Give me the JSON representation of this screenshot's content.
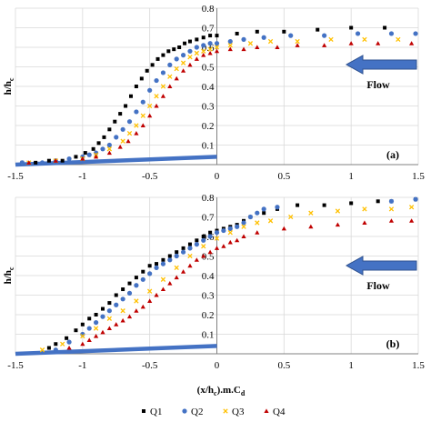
{
  "colors": {
    "Q1": "#000000",
    "Q2": "#4472C4",
    "Q3": "#FFC000",
    "Q4": "#C00000",
    "bed": "#4472C4",
    "arrow": "#4472C4",
    "arrow_stroke": "#2F528F",
    "grid": "#D9D9D9",
    "axis": "#808080"
  },
  "legend_symbols": {
    "Q1": "■",
    "Q2": "●",
    "Q3": "×",
    "Q4": "▲"
  },
  "xlabel_parts": {
    "base": "(x/h",
    "sub1": "c",
    "mid": ").m.C",
    "sub2": "d"
  },
  "ylabel_parts": {
    "base": "h/h",
    "sub": "c"
  },
  "flow_label": "Flow",
  "chart_data": [
    {
      "type": "scatter",
      "panel_label": "(a)",
      "xlim": [
        -1.5,
        1.5
      ],
      "ylim": [
        0,
        0.8
      ],
      "x_ticks": [
        -1.5,
        -1,
        -0.5,
        0,
        0.5,
        1,
        1.5
      ],
      "x_tick_labels": [
        "-1.5",
        "-1",
        "-0.5",
        "0",
        "0.5",
        "1",
        "1.5"
      ],
      "y_ticks": [
        0.1,
        0.2,
        0.3,
        0.4,
        0.5,
        0.6,
        0.7,
        0.8
      ],
      "y_tick_labels": [
        "0.1",
        "0.2",
        "0.3",
        "0.4",
        "0.5",
        "0.6",
        "0.7",
        "0.8"
      ],
      "grid": true,
      "legend": "bottom",
      "bed_line": {
        "x": [
          -1.5,
          0
        ],
        "y": [
          0,
          0.04
        ]
      },
      "series": [
        {
          "name": "Q1",
          "marker": "square",
          "x": [
            -1.45,
            -1.35,
            -1.25,
            -1.15,
            -1.05,
            -0.98,
            -0.92,
            -0.88,
            -0.84,
            -0.8,
            -0.76,
            -0.72,
            -0.68,
            -0.64,
            -0.6,
            -0.56,
            -0.52,
            -0.48,
            -0.44,
            -0.4,
            -0.36,
            -0.32,
            -0.28,
            -0.24,
            -0.2,
            -0.15,
            -0.1,
            -0.05,
            0.0,
            0.15,
            0.3,
            0.5,
            0.75,
            1.0,
            1.25
          ],
          "y": [
            0.01,
            0.01,
            0.02,
            0.02,
            0.04,
            0.06,
            0.08,
            0.11,
            0.14,
            0.18,
            0.22,
            0.26,
            0.3,
            0.35,
            0.4,
            0.44,
            0.48,
            0.51,
            0.54,
            0.56,
            0.58,
            0.59,
            0.6,
            0.62,
            0.63,
            0.64,
            0.65,
            0.66,
            0.66,
            0.67,
            0.68,
            0.68,
            0.69,
            0.7,
            0.7
          ]
        },
        {
          "name": "Q2",
          "marker": "circle",
          "x": [
            -1.45,
            -1.3,
            -1.2,
            -1.1,
            -1.0,
            -0.95,
            -0.9,
            -0.85,
            -0.8,
            -0.75,
            -0.7,
            -0.65,
            -0.6,
            -0.55,
            -0.5,
            -0.45,
            -0.4,
            -0.35,
            -0.3,
            -0.25,
            -0.2,
            -0.15,
            -0.1,
            -0.05,
            0.0,
            0.1,
            0.2,
            0.35,
            0.55,
            0.8,
            1.05,
            1.3,
            1.48
          ],
          "y": [
            0.01,
            0.01,
            0.02,
            0.03,
            0.04,
            0.05,
            0.06,
            0.08,
            0.1,
            0.14,
            0.18,
            0.22,
            0.27,
            0.32,
            0.38,
            0.43,
            0.47,
            0.51,
            0.54,
            0.56,
            0.58,
            0.6,
            0.61,
            0.62,
            0.62,
            0.63,
            0.64,
            0.65,
            0.66,
            0.66,
            0.67,
            0.67,
            0.67
          ]
        },
        {
          "name": "Q3",
          "marker": "x",
          "x": [
            -1.4,
            -1.2,
            -1.0,
            -0.9,
            -0.8,
            -0.7,
            -0.65,
            -0.6,
            -0.55,
            -0.5,
            -0.45,
            -0.4,
            -0.35,
            -0.3,
            -0.25,
            -0.2,
            -0.15,
            -0.1,
            -0.05,
            0.0,
            0.1,
            0.25,
            0.4,
            0.6,
            0.85,
            1.1,
            1.35
          ],
          "y": [
            0.01,
            0.02,
            0.03,
            0.05,
            0.08,
            0.12,
            0.16,
            0.2,
            0.25,
            0.3,
            0.35,
            0.4,
            0.45,
            0.49,
            0.52,
            0.55,
            0.57,
            0.58,
            0.59,
            0.6,
            0.61,
            0.62,
            0.63,
            0.63,
            0.64,
            0.64,
            0.64
          ]
        },
        {
          "name": "Q4",
          "marker": "triangle",
          "x": [
            -1.4,
            -1.2,
            -1.0,
            -0.9,
            -0.8,
            -0.72,
            -0.66,
            -0.6,
            -0.55,
            -0.5,
            -0.45,
            -0.4,
            -0.35,
            -0.3,
            -0.25,
            -0.2,
            -0.15,
            -0.1,
            -0.05,
            0.0,
            0.1,
            0.2,
            0.3,
            0.45,
            0.6,
            0.8,
            1.0,
            1.2,
            1.45
          ],
          "y": [
            0.01,
            0.02,
            0.03,
            0.04,
            0.06,
            0.09,
            0.12,
            0.16,
            0.2,
            0.25,
            0.3,
            0.35,
            0.4,
            0.44,
            0.48,
            0.51,
            0.54,
            0.56,
            0.57,
            0.58,
            0.59,
            0.59,
            0.6,
            0.6,
            0.61,
            0.61,
            0.62,
            0.62,
            0.62
          ]
        }
      ]
    },
    {
      "type": "scatter",
      "panel_label": "(b)",
      "xlim": [
        -1.5,
        1.5
      ],
      "ylim": [
        0,
        0.8
      ],
      "x_ticks": [
        -1.5,
        -1,
        -0.5,
        0,
        0.5,
        1,
        1.5
      ],
      "x_tick_labels": [
        "-1.5",
        "-1",
        "-0.5",
        "0",
        "0.5",
        "1",
        "1.5"
      ],
      "y_ticks": [
        0.1,
        0.2,
        0.3,
        0.4,
        0.5,
        0.6,
        0.7,
        0.8
      ],
      "y_tick_labels": [
        "0.1",
        "0.2",
        "0.3",
        "0.4",
        "0.5",
        "0.6",
        "0.7",
        "0.8"
      ],
      "grid": true,
      "legend": "bottom",
      "bed_line": {
        "x": [
          -1.5,
          0
        ],
        "y": [
          0,
          0.04
        ]
      },
      "series": [
        {
          "name": "Q1",
          "marker": "square",
          "x": [
            -1.25,
            -1.2,
            -1.12,
            -1.05,
            -1.0,
            -0.95,
            -0.9,
            -0.85,
            -0.8,
            -0.75,
            -0.7,
            -0.65,
            -0.6,
            -0.55,
            -0.5,
            -0.45,
            -0.4,
            -0.35,
            -0.3,
            -0.25,
            -0.2,
            -0.15,
            -0.1,
            -0.05,
            0.0,
            0.05,
            0.1,
            0.15,
            0.2,
            0.25,
            0.35,
            0.45,
            0.6,
            0.8,
            1.0,
            1.2,
            1.3,
            1.48
          ],
          "y": [
            0.03,
            0.05,
            0.08,
            0.12,
            0.15,
            0.18,
            0.2,
            0.23,
            0.26,
            0.3,
            0.33,
            0.36,
            0.39,
            0.42,
            0.45,
            0.46,
            0.48,
            0.5,
            0.52,
            0.54,
            0.56,
            0.58,
            0.6,
            0.62,
            0.63,
            0.64,
            0.65,
            0.66,
            0.68,
            0.7,
            0.72,
            0.74,
            0.76,
            0.76,
            0.77,
            0.78,
            0.78,
            0.79
          ]
        },
        {
          "name": "Q2",
          "marker": "circle",
          "x": [
            -1.2,
            -1.1,
            -1.0,
            -0.95,
            -0.9,
            -0.85,
            -0.8,
            -0.75,
            -0.7,
            -0.65,
            -0.6,
            -0.55,
            -0.5,
            -0.45,
            -0.4,
            -0.35,
            -0.3,
            -0.25,
            -0.2,
            -0.15,
            -0.1,
            -0.05,
            0.0,
            0.05,
            0.1,
            0.15,
            0.2,
            0.25,
            0.3,
            0.35,
            0.45,
            1.3,
            1.48
          ],
          "y": [
            0.02,
            0.06,
            0.1,
            0.13,
            0.16,
            0.19,
            0.22,
            0.25,
            0.28,
            0.31,
            0.35,
            0.38,
            0.41,
            0.44,
            0.46,
            0.48,
            0.5,
            0.52,
            0.54,
            0.56,
            0.58,
            0.6,
            0.62,
            0.63,
            0.64,
            0.65,
            0.67,
            0.7,
            0.72,
            0.74,
            0.75,
            0.78,
            0.79
          ]
        },
        {
          "name": "Q3",
          "marker": "x",
          "x": [
            -1.3,
            -1.15,
            -1.0,
            -0.9,
            -0.8,
            -0.7,
            -0.6,
            -0.5,
            -0.4,
            -0.3,
            -0.2,
            -0.1,
            0.0,
            0.1,
            0.2,
            0.3,
            0.4,
            0.55,
            0.7,
            0.9,
            1.1,
            1.3,
            1.45
          ],
          "y": [
            0.02,
            0.05,
            0.09,
            0.13,
            0.18,
            0.22,
            0.27,
            0.32,
            0.38,
            0.44,
            0.5,
            0.55,
            0.59,
            0.62,
            0.65,
            0.67,
            0.68,
            0.7,
            0.72,
            0.73,
            0.74,
            0.74,
            0.75
          ]
        },
        {
          "name": "Q4",
          "marker": "triangle",
          "x": [
            -1.1,
            -1.0,
            -0.95,
            -0.9,
            -0.85,
            -0.8,
            -0.75,
            -0.7,
            -0.65,
            -0.6,
            -0.55,
            -0.5,
            -0.45,
            -0.4,
            -0.35,
            -0.3,
            -0.25,
            -0.2,
            -0.15,
            -0.1,
            -0.05,
            0.0,
            0.05,
            0.1,
            0.15,
            0.2,
            0.3,
            0.5,
            0.7,
            0.9,
            1.1,
            1.3,
            1.45
          ],
          "y": [
            0.03,
            0.05,
            0.07,
            0.09,
            0.11,
            0.13,
            0.15,
            0.17,
            0.19,
            0.22,
            0.24,
            0.27,
            0.3,
            0.33,
            0.36,
            0.39,
            0.42,
            0.45,
            0.48,
            0.5,
            0.52,
            0.54,
            0.55,
            0.57,
            0.58,
            0.6,
            0.62,
            0.64,
            0.65,
            0.66,
            0.67,
            0.68,
            0.68
          ]
        }
      ]
    }
  ]
}
